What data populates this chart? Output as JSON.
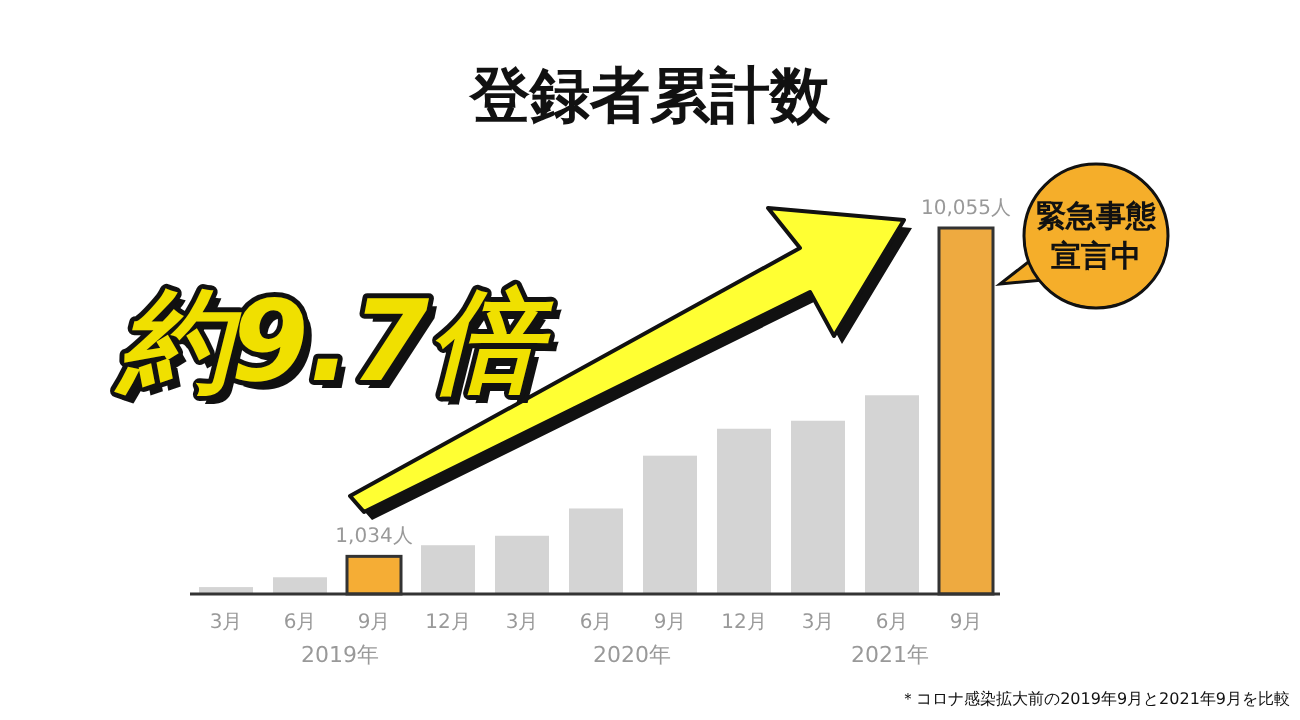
{
  "chart_data": {
    "type": "bar",
    "title": "登録者累計数",
    "categories": [
      "3月",
      "6月",
      "9月",
      "12月",
      "3月",
      "6月",
      "9月",
      "12月",
      "3月",
      "6月",
      "9月"
    ],
    "values": [
      190,
      460,
      1034,
      1340,
      1600,
      2350,
      3800,
      4540,
      4760,
      5460,
      10055
    ],
    "colors": [
      "#d4d4d4",
      "#d4d4d4",
      "#f5ad35",
      "#d4d4d4",
      "#d4d4d4",
      "#d4d4d4",
      "#d4d4d4",
      "#d4d4d4",
      "#d4d4d4",
      "#d4d4d4",
      "#eeaa40"
    ],
    "value_labels": [
      null,
      null,
      "1,034人",
      null,
      null,
      null,
      null,
      null,
      null,
      null,
      "10,055人"
    ],
    "annotations": [
      "2019年",
      "2020年",
      "2021年",
      "約9.7倍",
      "緊急事態宣言中",
      "＊コロナ感染拡大前の2019年9月と2021年9月を比較"
    ]
  }
}
